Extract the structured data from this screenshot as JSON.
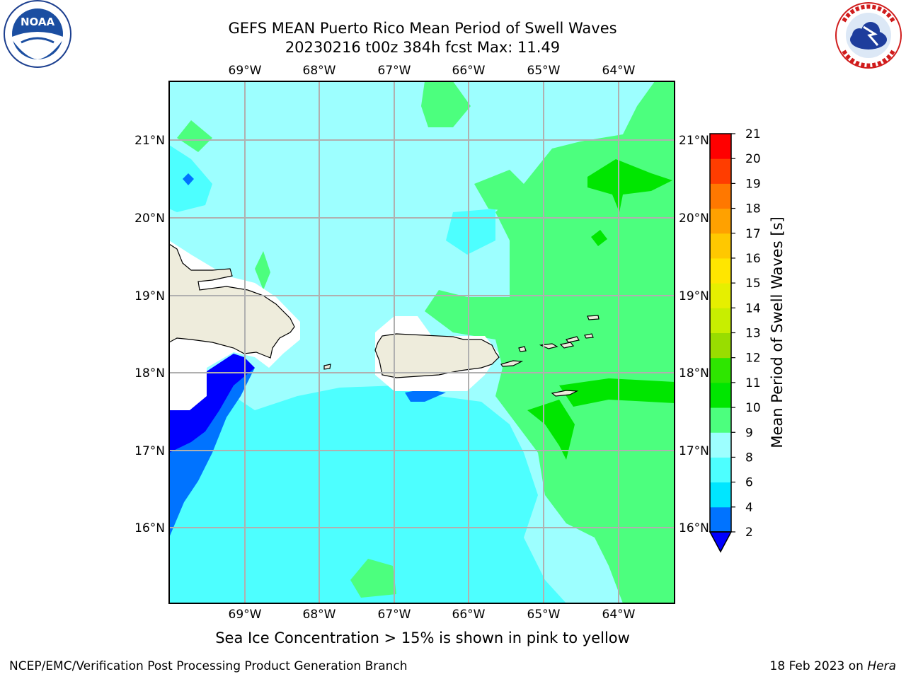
{
  "header": {
    "title_line1": "GEFS MEAN Puerto Rico Mean Period of Swell Waves",
    "title_line2": "20230216 t00z 384h fcst   Max: 11.49"
  },
  "map": {
    "lon_ticks": [
      "69°W",
      "68°W",
      "67°W",
      "66°W",
      "65°W",
      "64°W"
    ],
    "lat_ticks": [
      "21°N",
      "20°N",
      "19°N",
      "18°N",
      "17°N",
      "16°N"
    ],
    "land_color": "#eeecdc",
    "background_color": "#9dffff"
  },
  "colorbar": {
    "title": "Mean Period of Swell Waves [s]",
    "levels": [
      "2",
      "4",
      "6",
      "8",
      "9",
      "10",
      "11",
      "12",
      "13",
      "14",
      "15",
      "16",
      "17",
      "18",
      "19",
      "20",
      "21"
    ],
    "colors": [
      "#0000ff",
      "#0073ff",
      "#00e6ff",
      "#4dffff",
      "#9dffff",
      "#4cff7e",
      "#00e600",
      "#2ee600",
      "#99dd00",
      "#c8ee00",
      "#e6ef00",
      "#ffe600",
      "#ffc800",
      "#ffa100",
      "#ff7800",
      "#ff3d00",
      "#ff0000"
    ]
  },
  "footer": {
    "ice_note": "Sea Ice Concentration > 15% is shown in pink to yellow",
    "left": "NCEP/EMC/Verification Post Processing Product Generation Branch",
    "date": "18 Feb 2023 on",
    "machine": "Hera"
  },
  "logos": {
    "noaa_text": "NOAA",
    "nws_text": "NATIONAL WEATHER SERVICE"
  }
}
